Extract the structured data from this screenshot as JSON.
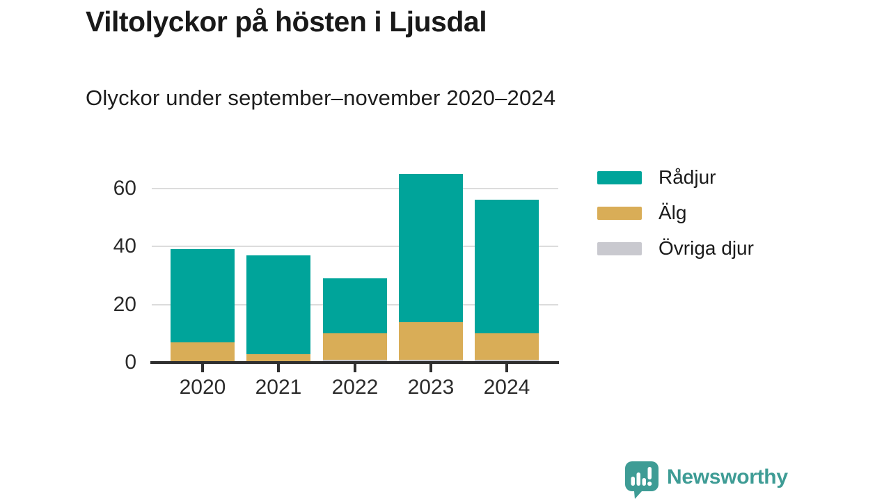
{
  "title": "Viltolyckor på hösten i Ljusdal",
  "subtitle": "Olyckor under september–november 2020–2024",
  "footer": {
    "brand": "Newsworthy",
    "logo_icon": "speech-bubble-bar-chart-exclamation",
    "brand_color": "#3e9c95"
  },
  "colors": {
    "radjur": "#00a49a",
    "alg": "#d9ad57",
    "ovriga_djur": "#c9c9cf",
    "grid": "#dcdcdc",
    "axis": "#2f2f2f",
    "text": "#1b1b1b"
  },
  "chart_data": {
    "type": "bar",
    "stacked": true,
    "title": "Viltolyckor på hösten i Ljusdal",
    "subtitle": "Olyckor under september–november 2020–2024",
    "categories": [
      "2020",
      "2021",
      "2022",
      "2023",
      "2024"
    ],
    "series": [
      {
        "name": "Rådjur",
        "color": "#00a49a",
        "values": [
          32,
          34,
          19,
          51,
          46
        ]
      },
      {
        "name": "Älg",
        "color": "#d9ad57",
        "values": [
          7,
          3,
          9,
          13,
          9
        ]
      },
      {
        "name": "Övriga djur",
        "color": "#c9c9cf",
        "values": [
          0,
          0,
          1,
          1,
          1
        ]
      }
    ],
    "stack_order_bottom_to_top": [
      "Övriga djur",
      "Älg",
      "Rådjur"
    ],
    "totals": [
      39,
      37,
      29,
      65,
      56
    ],
    "xlabel": "",
    "ylabel": "",
    "yticks": [
      0,
      20,
      40,
      60
    ],
    "ylim": [
      0,
      66
    ],
    "grid": true,
    "legend_position": "right"
  }
}
